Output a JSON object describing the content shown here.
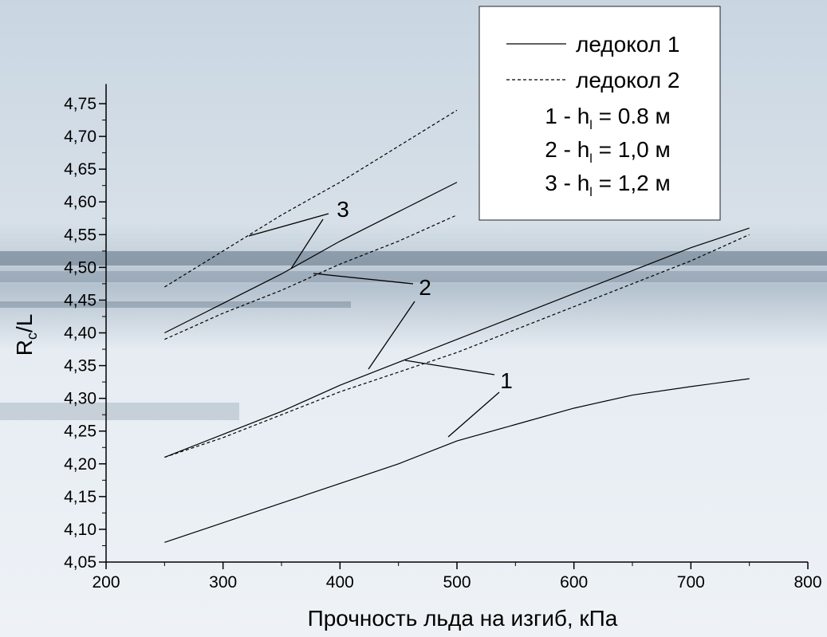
{
  "chart_data": {
    "type": "line",
    "x_label": "Прочность льда на изгиб, кПа",
    "y_label": {
      "main": "R",
      "sub": "c",
      "rest": "/L"
    },
    "xlim": [
      200,
      800
    ],
    "xticks": [
      200,
      300,
      400,
      500,
      600,
      700,
      800
    ],
    "ylim": [
      4.05,
      4.78
    ],
    "yticks": [
      {
        "value": 4.05,
        "label": "4,05"
      },
      {
        "value": 4.1,
        "label": "4,10"
      },
      {
        "value": 4.15,
        "label": "4,15"
      },
      {
        "value": 4.2,
        "label": "4,20"
      },
      {
        "value": 4.25,
        "label": "4,25"
      },
      {
        "value": 4.3,
        "label": "4,30"
      },
      {
        "value": 4.35,
        "label": "4,35"
      },
      {
        "value": 4.4,
        "label": "4,40"
      },
      {
        "value": 4.45,
        "label": "4,45"
      },
      {
        "value": 4.5,
        "label": "4,50"
      },
      {
        "value": 4.55,
        "label": "4,55"
      },
      {
        "value": 4.6,
        "label": "4,60"
      },
      {
        "value": 4.65,
        "label": "4,65"
      },
      {
        "value": 4.7,
        "label": "4,70"
      },
      {
        "value": 4.75,
        "label": "4,75"
      }
    ],
    "legend": [
      {
        "label": "ледокол 1",
        "style": "solid"
      },
      {
        "label": "ледокол 2",
        "style": "dashed"
      }
    ],
    "notes": [
      {
        "prefix": "1 - h",
        "sub": "l",
        "suffix": " = 0.8 м"
      },
      {
        "prefix": "2 - h",
        "sub": "l",
        "suffix": " = 1,0 м"
      },
      {
        "prefix": "3 - h",
        "sub": "l",
        "suffix": " = 1,2 м"
      }
    ],
    "series": [
      {
        "style": "solid",
        "color": "#000000",
        "x": [
          250,
          300,
          350,
          400,
          450,
          500,
          550,
          600,
          650,
          700,
          750
        ],
        "values": [
          4.08,
          4.11,
          4.14,
          4.17,
          4.2,
          4.235,
          4.26,
          4.285,
          4.305,
          4.318,
          4.33
        ]
      },
      {
        "style": "dashed",
        "color": "#000000",
        "x": [
          250,
          300,
          350,
          400,
          450,
          500,
          550,
          600,
          650,
          700,
          750
        ],
        "values": [
          4.21,
          4.24,
          4.275,
          4.31,
          4.34,
          4.37,
          4.405,
          4.44,
          4.475,
          4.51,
          4.55
        ]
      },
      {
        "style": "solid",
        "color": "#000000",
        "x": [
          250,
          300,
          350,
          400,
          450,
          500,
          550,
          600,
          650,
          700,
          750
        ],
        "values": [
          4.21,
          4.245,
          4.28,
          4.32,
          4.355,
          4.39,
          4.425,
          4.46,
          4.495,
          4.53,
          4.56
        ]
      },
      {
        "style": "dashed",
        "color": "#000000",
        "x": [
          250,
          300,
          350,
          400,
          450,
          500
        ],
        "values": [
          4.39,
          4.43,
          4.465,
          4.505,
          4.54,
          4.58
        ]
      },
      {
        "style": "solid",
        "color": "#000000",
        "x": [
          250,
          300,
          350,
          400,
          450,
          500
        ],
        "values": [
          4.4,
          4.445,
          4.49,
          4.54,
          4.585,
          4.63
        ]
      },
      {
        "style": "dashed",
        "color": "#000000",
        "x": [
          250,
          300,
          350,
          400,
          450,
          500
        ],
        "values": [
          4.47,
          4.525,
          4.58,
          4.63,
          4.685,
          4.74
        ]
      }
    ],
    "annotations": [
      "3",
      "2",
      "1"
    ]
  }
}
